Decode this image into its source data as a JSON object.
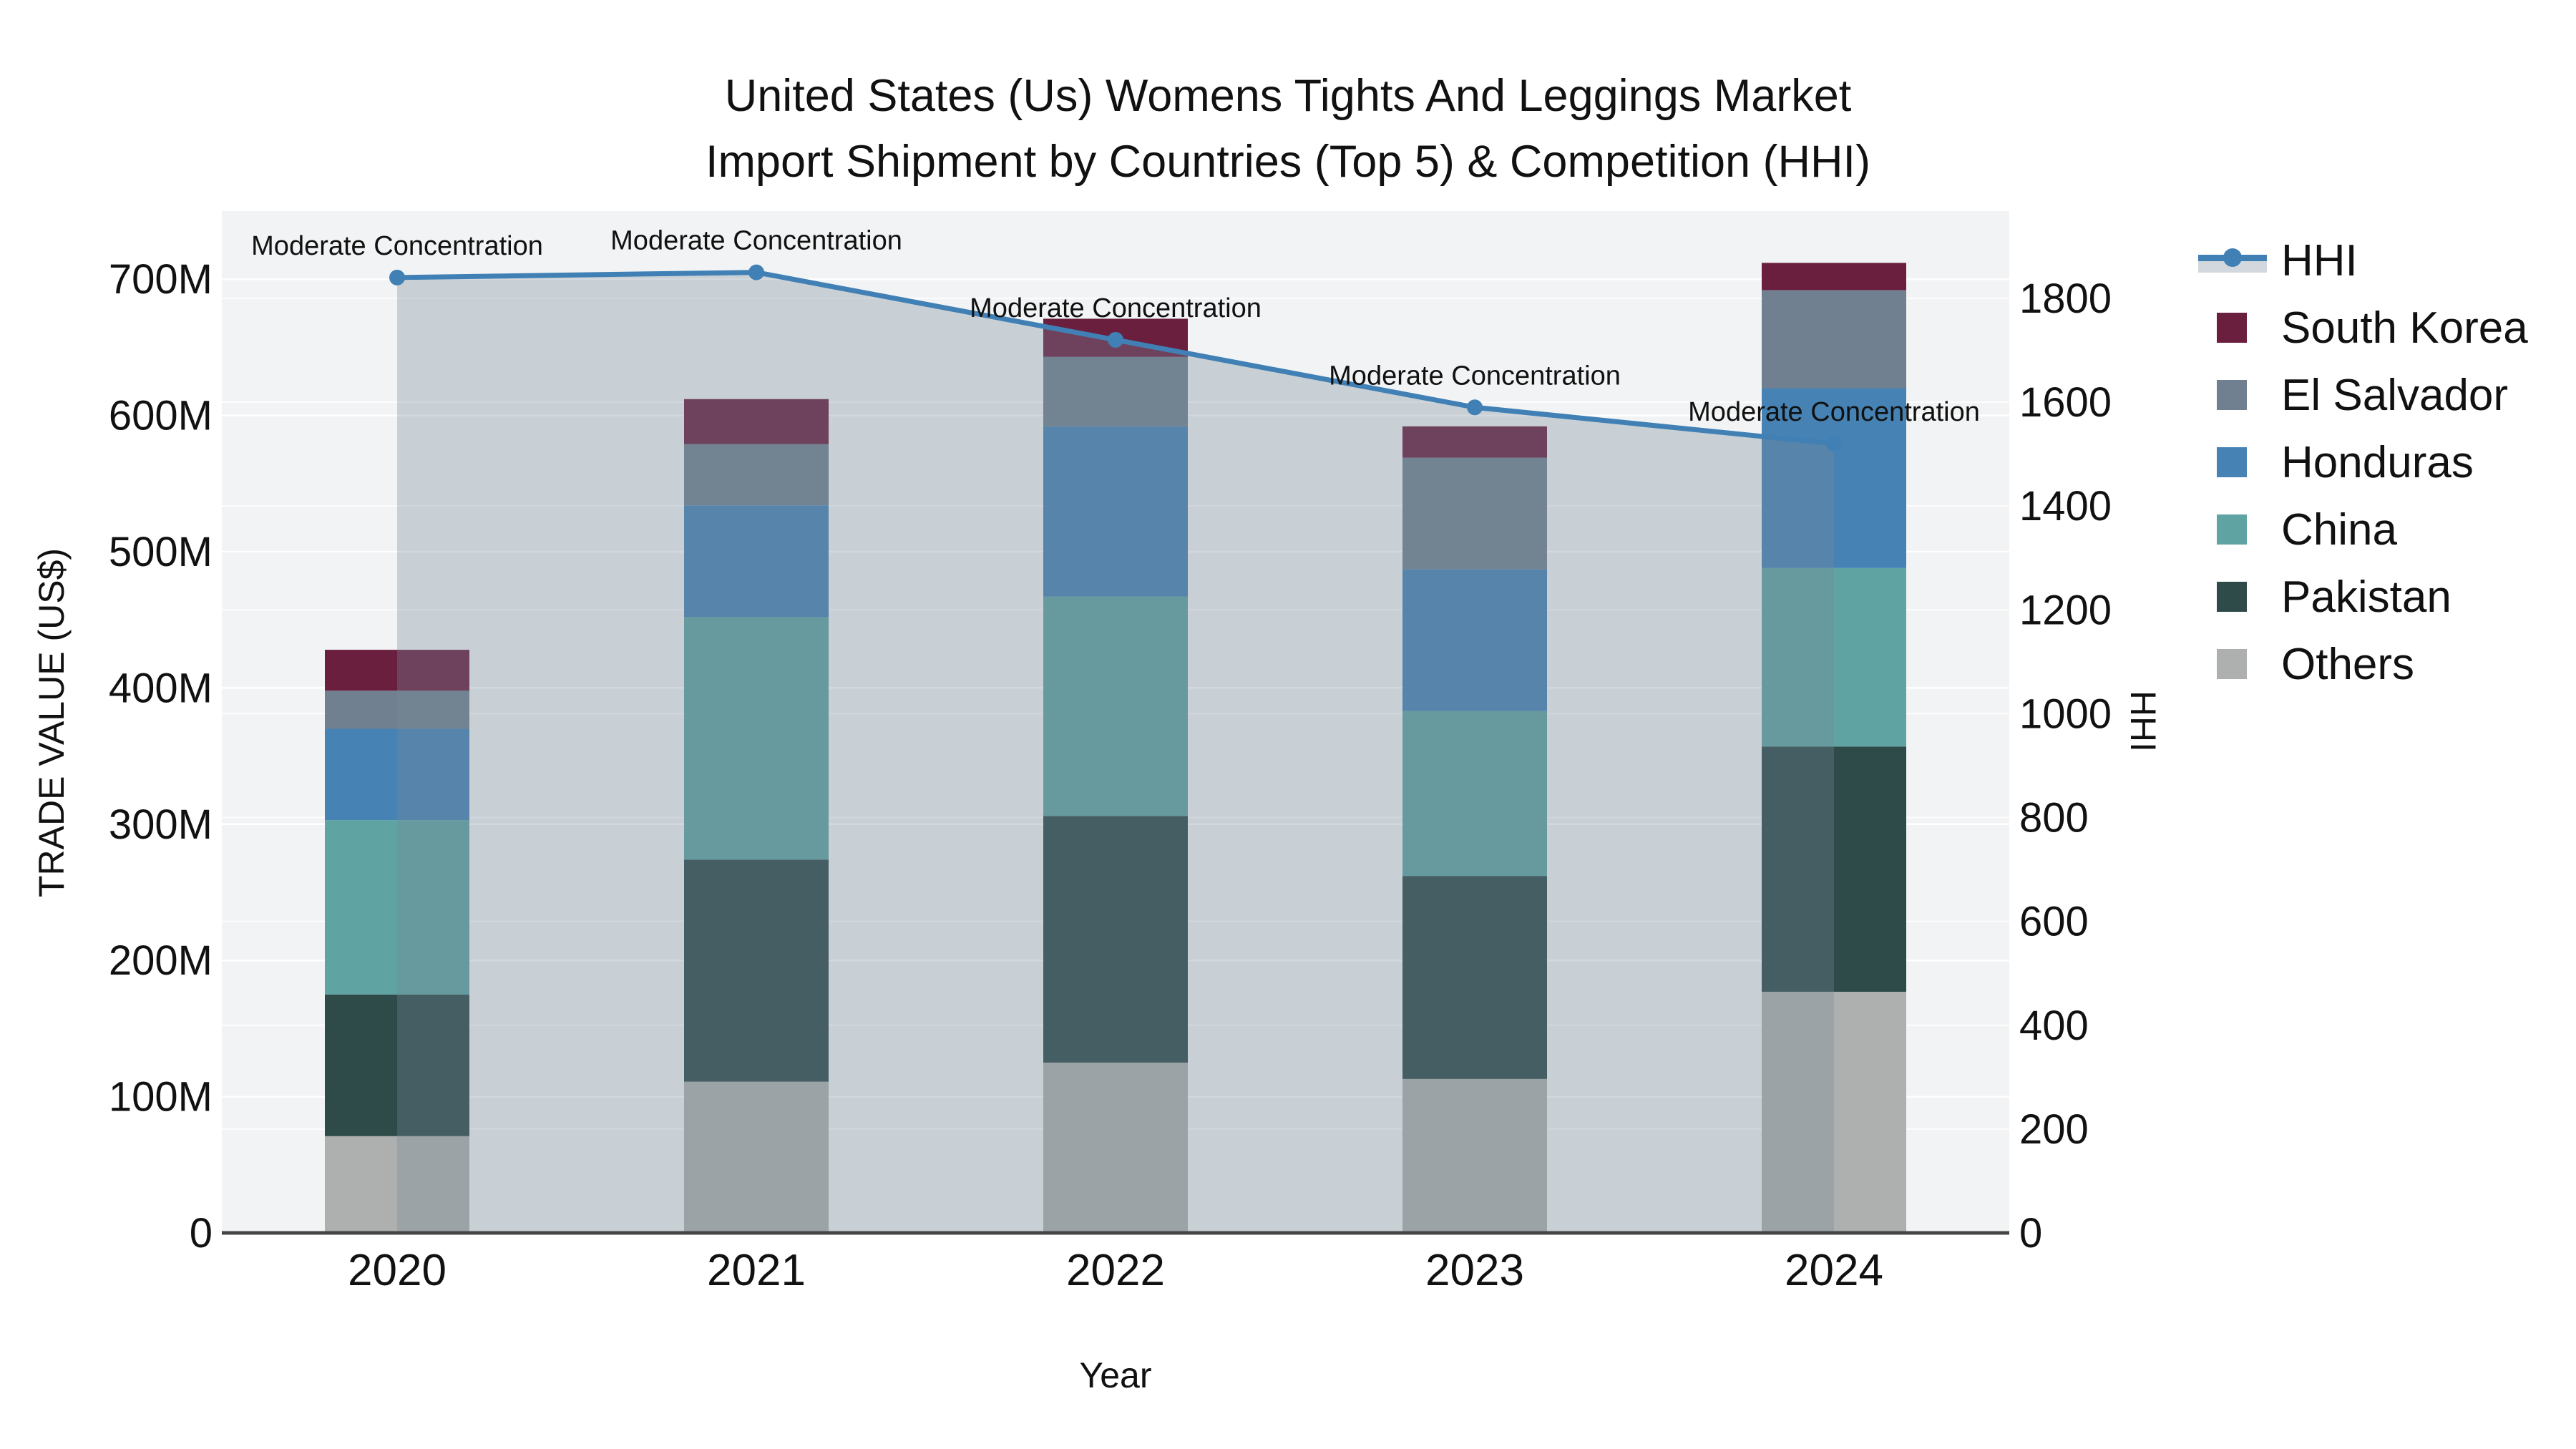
{
  "title": {
    "line1": "United States (Us) Womens Tights And Leggings Market",
    "line2": "Import Shipment by Countries (Top 5) & Competition (HHI)"
  },
  "axes": {
    "x_label": "Year",
    "y_left_label": "TRADE VALUE (US$)",
    "y_right_label": "HHI",
    "y_left_ticks": [
      "0",
      "100M",
      "200M",
      "300M",
      "400M",
      "500M",
      "600M",
      "700M"
    ],
    "y_left_tick_values": [
      0,
      100,
      200,
      300,
      400,
      500,
      600,
      700
    ],
    "y_right_ticks": [
      "0",
      "200",
      "400",
      "600",
      "800",
      "1000",
      "1200",
      "1400",
      "1600",
      "1800"
    ],
    "y_right_tick_values": [
      0,
      200,
      400,
      600,
      800,
      1000,
      1200,
      1400,
      1600,
      1800
    ]
  },
  "chart_data": {
    "type": "bar",
    "subtype": "stacked-bars-with-line-overlay",
    "unit": "US$ millions (left axis), HHI index (right axis)",
    "categories": [
      "2020",
      "2021",
      "2022",
      "2023",
      "2024"
    ],
    "series": [
      {
        "name": "Others",
        "color": "#ADB0AF",
        "values": [
          71,
          111,
          125,
          113,
          177
        ]
      },
      {
        "name": "Pakistan",
        "color": "#2E4A49",
        "values": [
          104,
          163,
          181,
          149,
          180
        ]
      },
      {
        "name": "China",
        "color": "#5FA3A3",
        "values": [
          128,
          178,
          161,
          121,
          131
        ]
      },
      {
        "name": "Honduras",
        "color": "#4682B4",
        "values": [
          67,
          82,
          125,
          104,
          132
        ]
      },
      {
        "name": "El Salvador",
        "color": "#708090",
        "values": [
          28,
          45,
          51,
          82,
          72
        ]
      },
      {
        "name": "South Korea",
        "color": "#6A1F3F",
        "values": [
          30,
          33,
          28,
          23,
          20
        ]
      }
    ],
    "bar_totals": [
      428,
      612,
      671,
      592,
      712
    ],
    "line_series": {
      "name": "HHI",
      "color": "#4180B5",
      "fill_color": "rgba(119,136,153,0.33)",
      "values": [
        1840,
        1850,
        1720,
        1590,
        1520
      ]
    },
    "annotations": [
      {
        "category": "2020",
        "text": "Moderate Concentration"
      },
      {
        "category": "2021",
        "text": "Moderate Concentration"
      },
      {
        "category": "2022",
        "text": "Moderate Concentration"
      },
      {
        "category": "2023",
        "text": "Moderate Concentration"
      },
      {
        "category": "2024",
        "text": "Moderate Concentration"
      }
    ],
    "y_left_range": [
      0,
      750
    ],
    "y_right_range": [
      0,
      1968
    ],
    "grid": true,
    "legend_position": "right",
    "legend_order": [
      "HHI",
      "South Korea",
      "El Salvador",
      "Honduras",
      "China",
      "Pakistan",
      "Others"
    ]
  },
  "colors": {
    "plot_bg": "#F2F3F4",
    "grid_line": "#FFFFFF",
    "axis_line": "#454545",
    "text": "#111111"
  }
}
